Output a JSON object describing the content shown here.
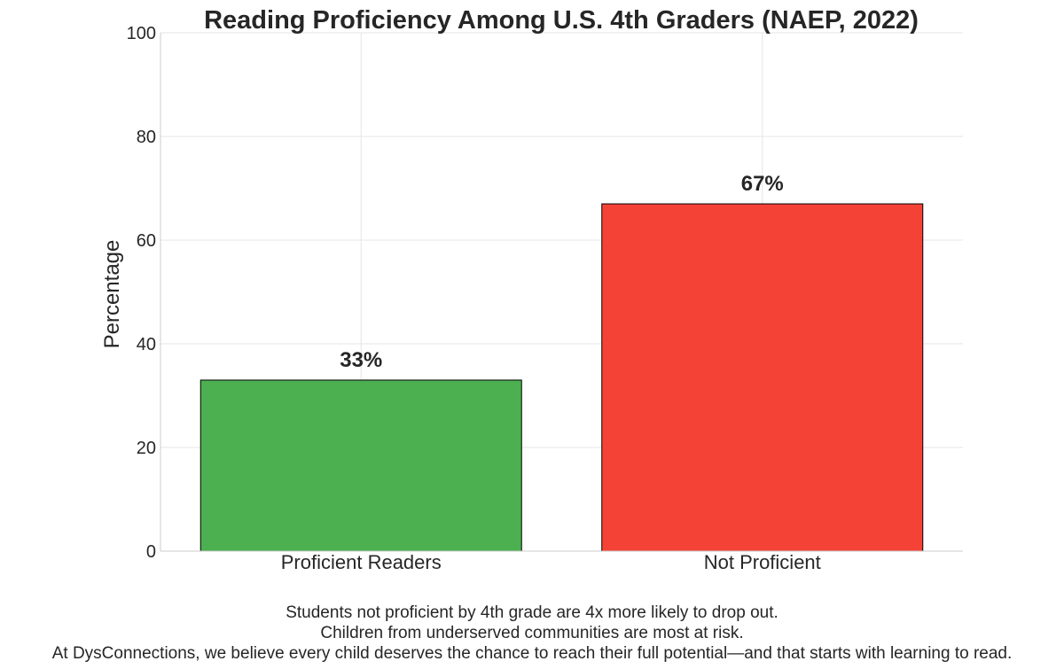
{
  "chart_data": {
    "type": "bar",
    "title": "Reading Proficiency Among U.S. 4th Graders (NAEP, 2022)",
    "xlabel": "",
    "ylabel": "Percentage",
    "categories": [
      "Proficient Readers",
      "Not Proficient"
    ],
    "values": [
      33,
      67
    ],
    "data_labels": [
      "33%",
      "67%"
    ],
    "colors": [
      "#4caf50",
      "#f44336"
    ],
    "ylim": [
      0,
      100
    ],
    "yticks": [
      0,
      20,
      40,
      60,
      80,
      100
    ],
    "grid": true,
    "legend": "none"
  },
  "footer": {
    "line1": "Students not proficient by 4th grade are 4x more likely to drop out.",
    "line2": "Children from underserved communities are most at risk.",
    "line3": "At DysConnections, we believe every child deserves the chance to reach their full potential—and that starts with learning to read."
  }
}
